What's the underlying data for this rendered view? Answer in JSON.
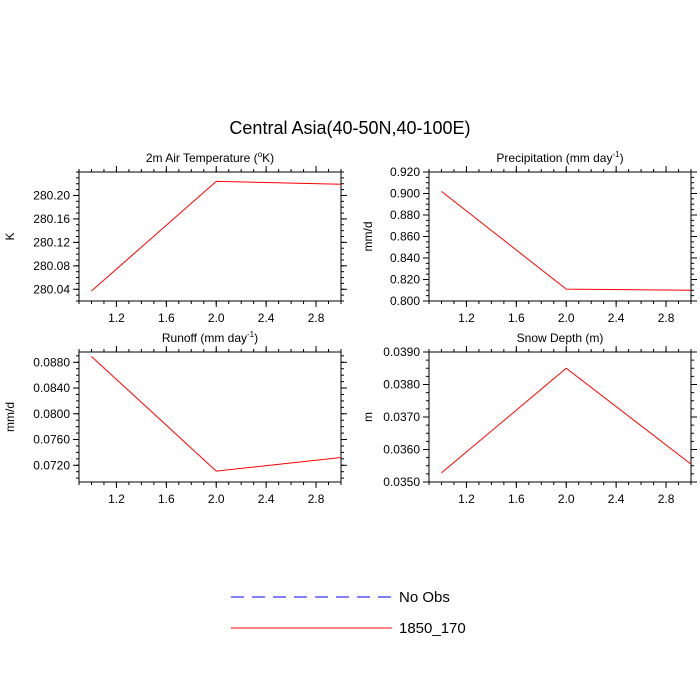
{
  "title": "Central Asia(40-50N,40-100E)",
  "legend": {
    "entries": [
      {
        "label": "No Obs",
        "color": "#0000ff",
        "dash": "dashed"
      },
      {
        "label": "1850_170",
        "color": "#ff0000",
        "dash": "solid"
      }
    ]
  },
  "chart_data": [
    {
      "type": "line",
      "title": "2m Air Temperature (°K)",
      "title_parts": {
        "before": "2m Air Temperature (",
        "sup": "o",
        "after": "K)"
      },
      "ylabel": "K",
      "xlabel": "",
      "xlim": [
        0.9,
        3.0
      ],
      "ylim": [
        280.02,
        280.24
      ],
      "xticks": [
        1.2,
        1.6,
        2.0,
        2.4,
        2.8
      ],
      "xtick_labels": [
        "1.2",
        "1.6",
        "2.0",
        "2.4",
        "2.8"
      ],
      "yticks": [
        280.04,
        280.08,
        280.12,
        280.16,
        280.2
      ],
      "ytick_labels": [
        "280.04",
        "280.08",
        "280.12",
        "280.16",
        "280.20"
      ],
      "series": [
        {
          "name": "1850_170",
          "color": "#ff0000",
          "x": [
            1.0,
            2.0,
            3.0
          ],
          "y": [
            280.037,
            280.224,
            280.219
          ]
        }
      ]
    },
    {
      "type": "line",
      "title": "Precipitation (mm day-1)",
      "title_parts": {
        "before": "Precipitation (mm day",
        "sup": "-1",
        "after": ")"
      },
      "ylabel": "mm/d",
      "xlabel": "",
      "xlim": [
        0.9,
        3.0
      ],
      "ylim": [
        0.8,
        0.92
      ],
      "xticks": [
        1.2,
        1.6,
        2.0,
        2.4,
        2.8
      ],
      "xtick_labels": [
        "1.2",
        "1.6",
        "2.0",
        "2.4",
        "2.8"
      ],
      "yticks": [
        0.8,
        0.82,
        0.84,
        0.86,
        0.88,
        0.9,
        0.92
      ],
      "ytick_labels": [
        "0.800",
        "0.820",
        "0.840",
        "0.860",
        "0.880",
        "0.900",
        "0.920"
      ],
      "series": [
        {
          "name": "1850_170",
          "color": "#ff0000",
          "x": [
            1.0,
            2.0,
            3.0
          ],
          "y": [
            0.902,
            0.811,
            0.81
          ]
        }
      ]
    },
    {
      "type": "line",
      "title": "Runoff (mm day-1)",
      "title_parts": {
        "before": "Runoff (mm day",
        "sup": "-1",
        "after": ")"
      },
      "ylabel": "mm/d",
      "xlabel": "",
      "xlim": [
        0.9,
        3.0
      ],
      "ylim": [
        0.0694,
        0.0896
      ],
      "xticks": [
        1.2,
        1.6,
        2.0,
        2.4,
        2.8
      ],
      "xtick_labels": [
        "1.2",
        "1.6",
        "2.0",
        "2.4",
        "2.8"
      ],
      "yticks": [
        0.072,
        0.076,
        0.08,
        0.084,
        0.088
      ],
      "ytick_labels": [
        "0.0720",
        "0.0760",
        "0.0800",
        "0.0840",
        "0.0880"
      ],
      "series": [
        {
          "name": "1850_170",
          "color": "#ff0000",
          "x": [
            1.0,
            2.0,
            3.0
          ],
          "y": [
            0.0889,
            0.0711,
            0.0732
          ]
        }
      ]
    },
    {
      "type": "line",
      "title": "Snow Depth (m)",
      "title_parts": {
        "before": "Snow Depth (m)",
        "sup": "",
        "after": ""
      },
      "ylabel": "m",
      "xlabel": "",
      "xlim": [
        0.9,
        3.0
      ],
      "ylim": [
        0.035,
        0.039
      ],
      "xticks": [
        1.2,
        1.6,
        2.0,
        2.4,
        2.8
      ],
      "xtick_labels": [
        "1.2",
        "1.6",
        "2.0",
        "2.4",
        "2.8"
      ],
      "yticks": [
        0.035,
        0.036,
        0.037,
        0.038,
        0.039
      ],
      "ytick_labels": [
        "0.0350",
        "0.0360",
        "0.0370",
        "0.0380",
        "0.0390"
      ],
      "series": [
        {
          "name": "1850_170",
          "color": "#ff0000",
          "x": [
            1.0,
            2.0,
            3.0
          ],
          "y": [
            0.03528,
            0.0385,
            0.03555
          ]
        }
      ]
    }
  ]
}
